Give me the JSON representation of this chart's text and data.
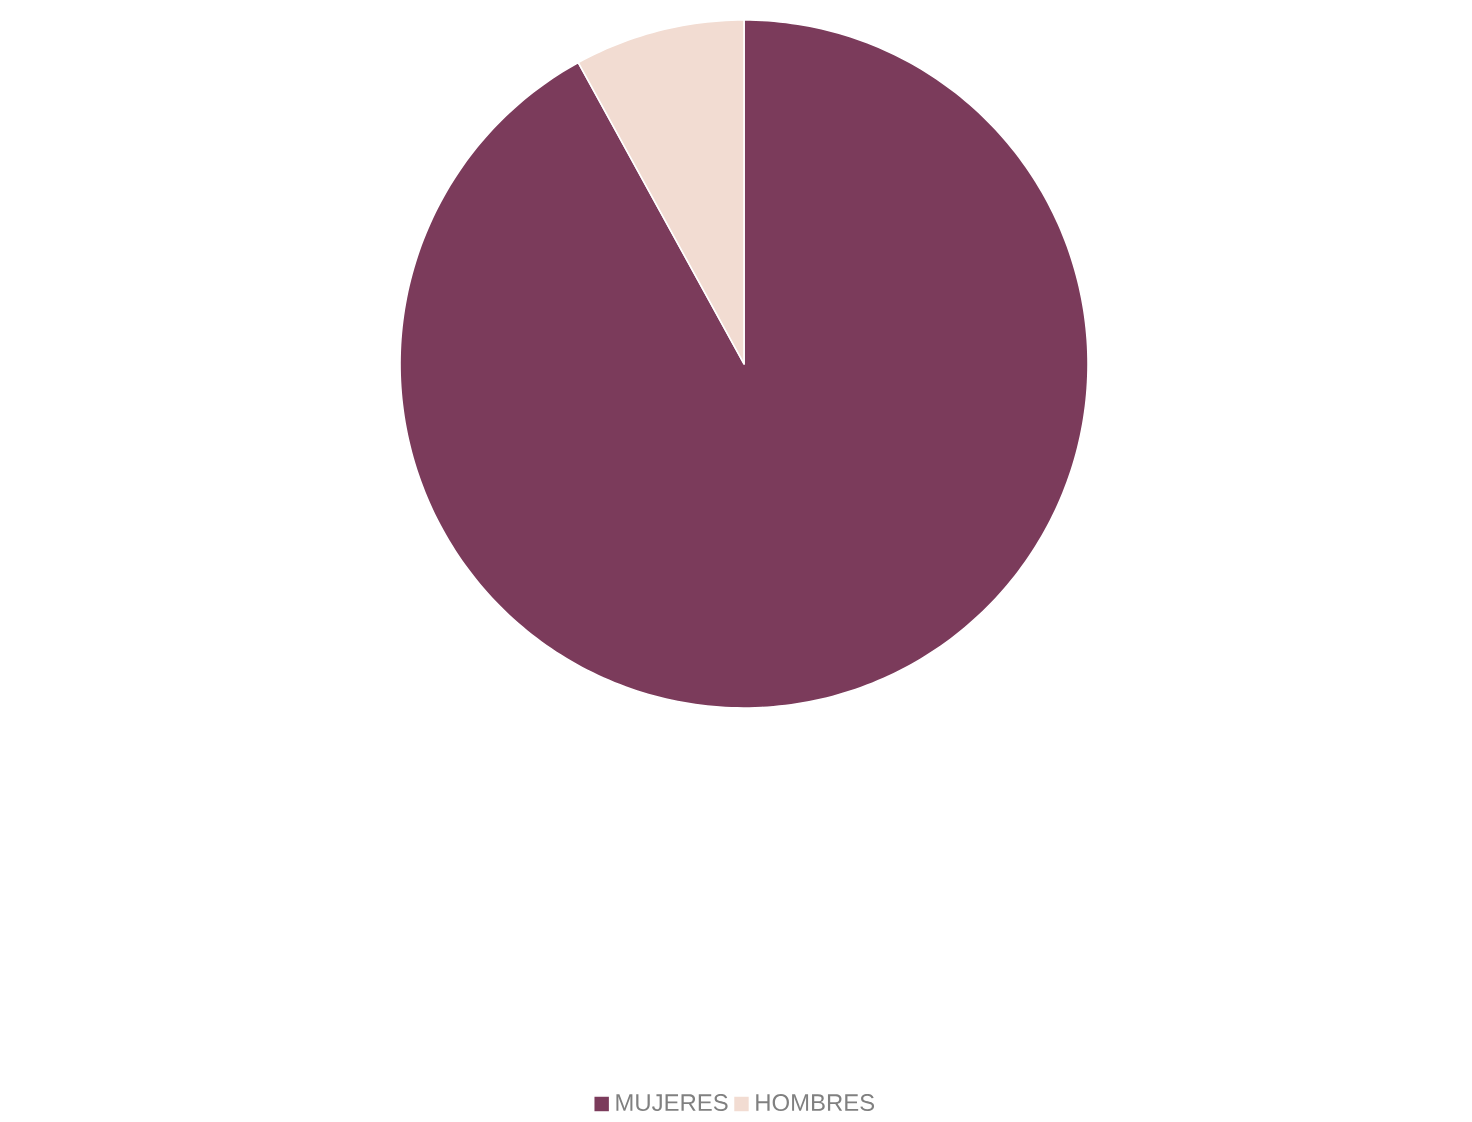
{
  "chart_data": {
    "type": "pie",
    "categories": [
      "MUJERES",
      "HOMBRES"
    ],
    "values": [
      92,
      8
    ],
    "colors": [
      "#7b3b5b",
      "#f2dcd2"
    ],
    "legend": "bottom"
  }
}
